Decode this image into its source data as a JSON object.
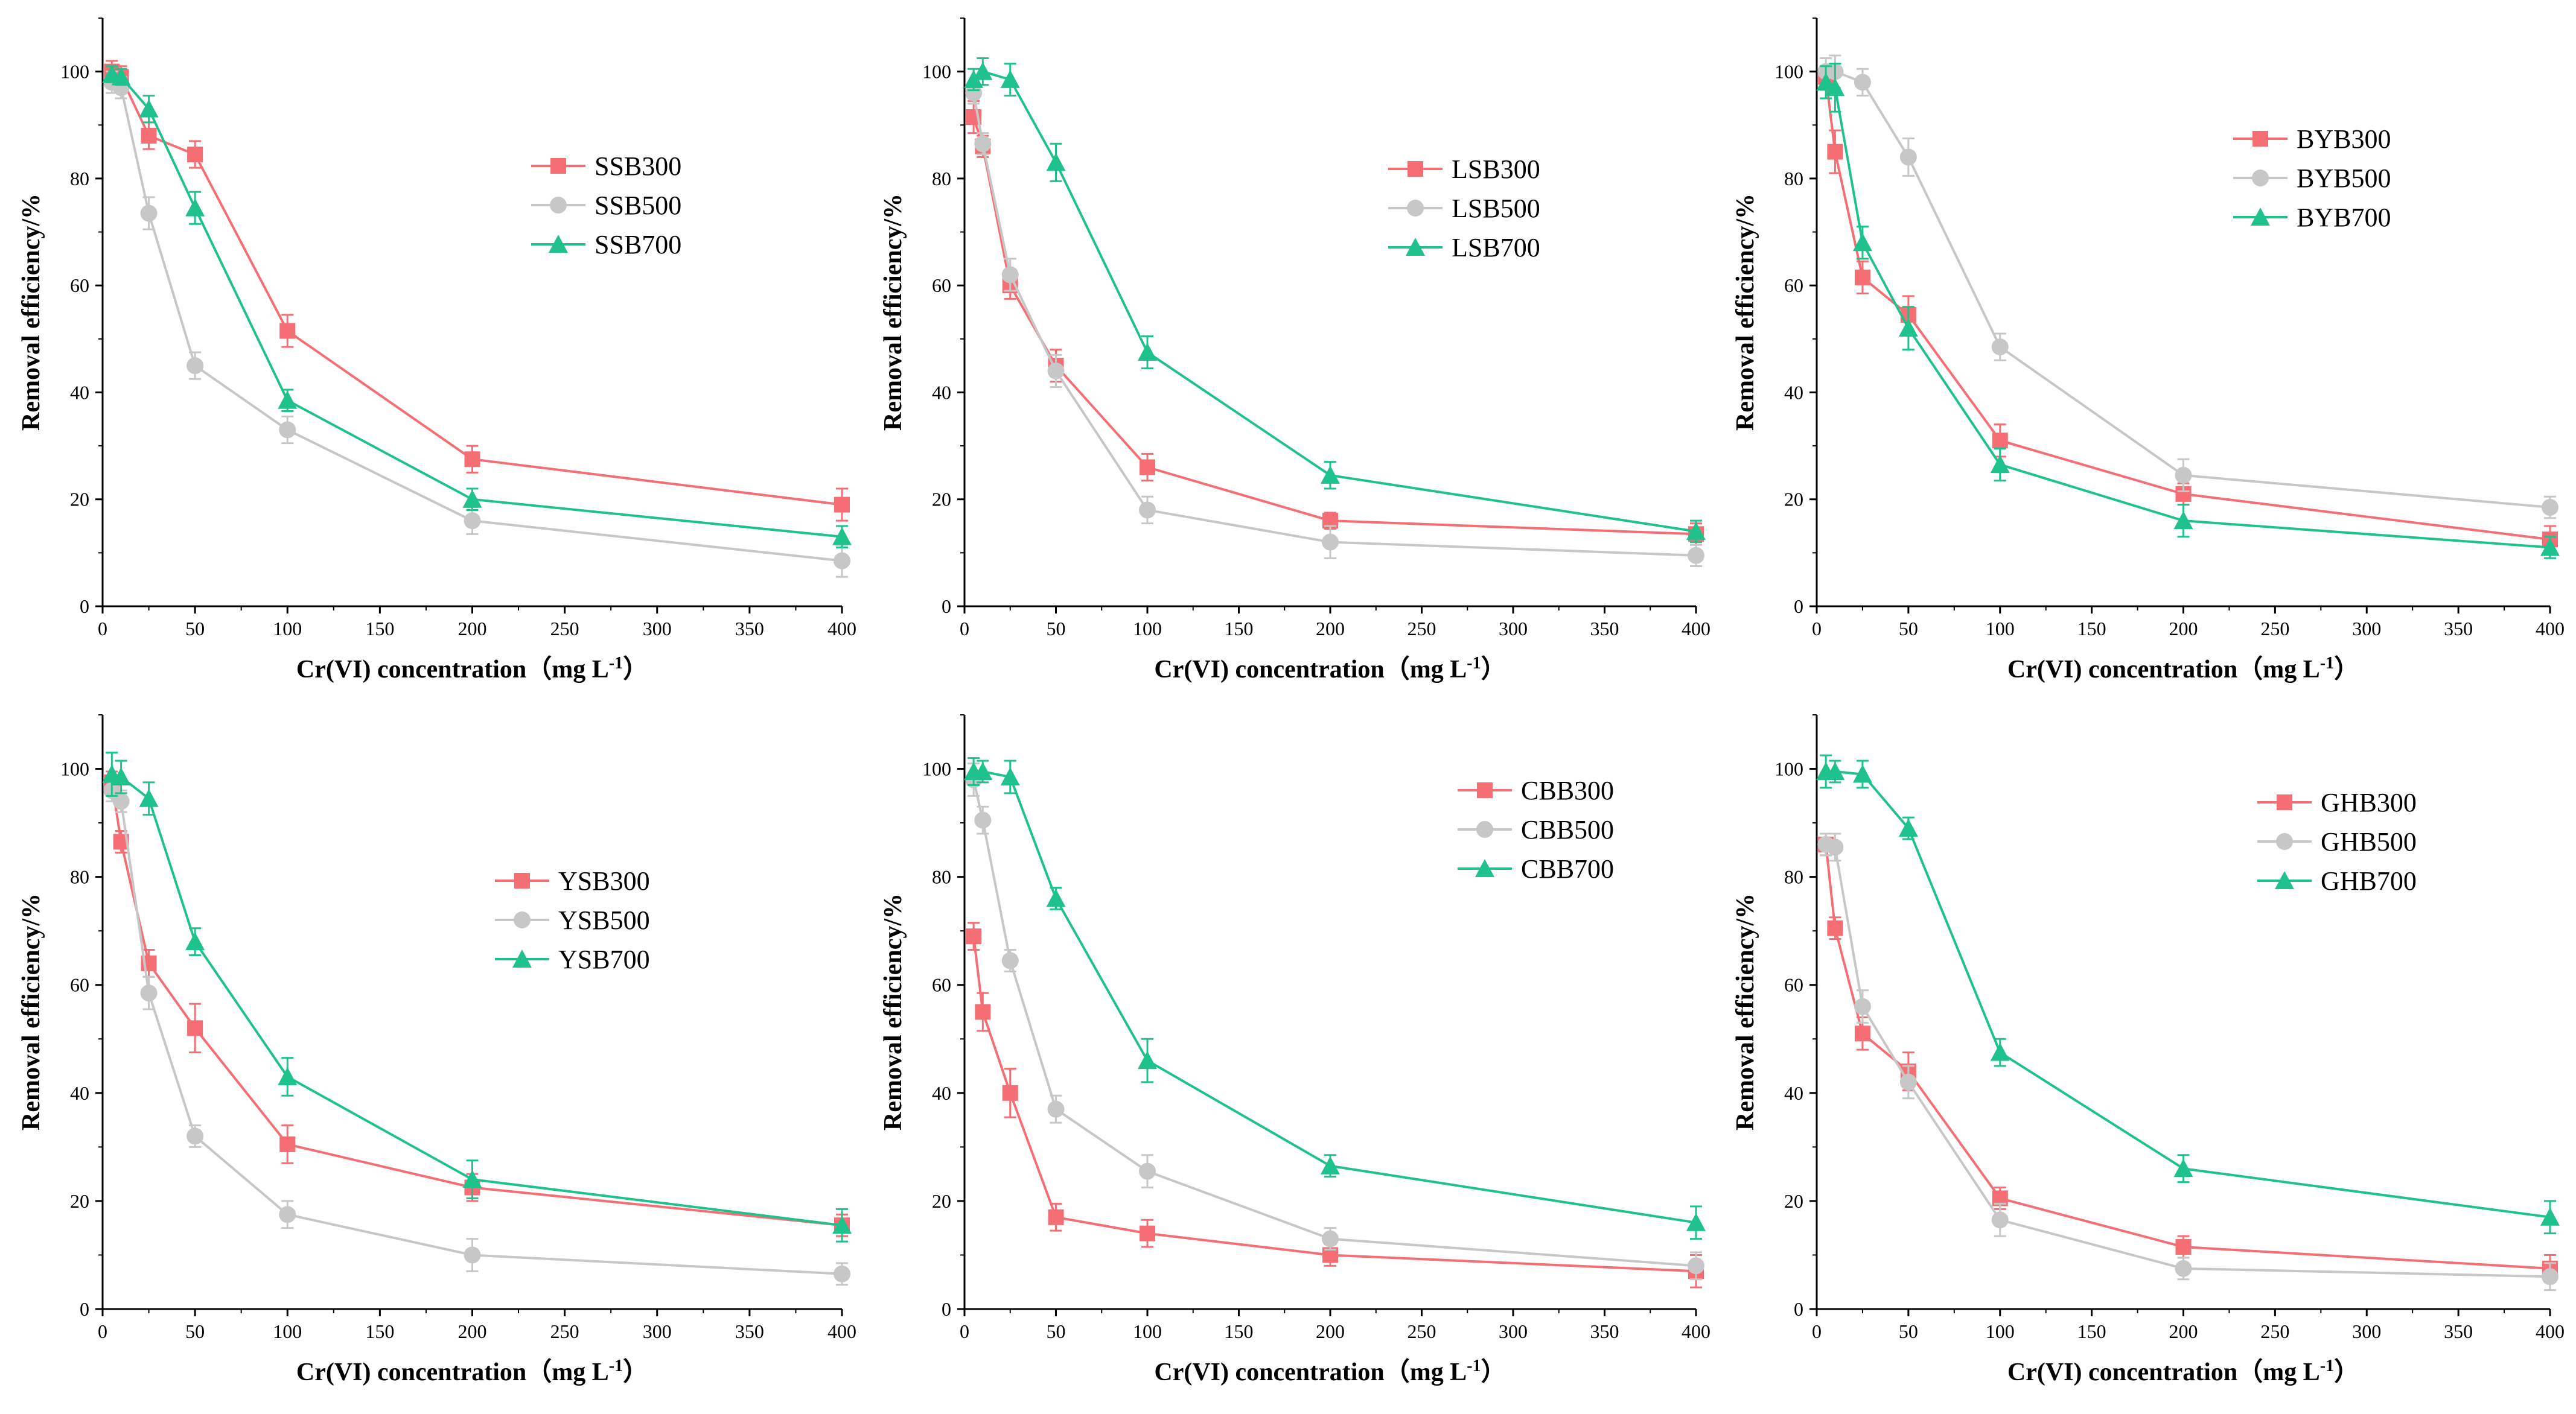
{
  "figure": {
    "colors": {
      "s300": "#F46E74",
      "s500": "#C7C7C7",
      "s700": "#1FC28D"
    },
    "x_ticks": [
      0,
      50,
      100,
      150,
      200,
      250,
      300,
      350,
      400
    ],
    "y_ticks": [
      0,
      20,
      40,
      60,
      80,
      100
    ]
  },
  "chart_data": [
    {
      "type": "line",
      "xlabel": "Cr(VI) concentration（mg L",
      "xlabel_sup": "-1",
      "xlabel_close": "）",
      "ylabel": "Removal efficiency/%",
      "xlim": [
        0,
        400
      ],
      "ylim": [
        0,
        110
      ],
      "legend_position": "upper-middle",
      "x": [
        5,
        10,
        25,
        50,
        100,
        200,
        400
      ],
      "series": [
        {
          "name": "SSB300",
          "marker": "square",
          "values": [
            100,
            99,
            88,
            84.5,
            51.5,
            27.5,
            19
          ],
          "errors": [
            2,
            2,
            2.5,
            2.5,
            3,
            2.5,
            3
          ]
        },
        {
          "name": "SSB500",
          "marker": "circle",
          "values": [
            98,
            97,
            73.5,
            45,
            33,
            16,
            8.5
          ],
          "errors": [
            2,
            2,
            3,
            2.5,
            2.5,
            2.5,
            3
          ]
        },
        {
          "name": "SSB700",
          "marker": "triangle",
          "values": [
            99.5,
            99,
            93,
            74.5,
            38.5,
            20,
            13
          ],
          "errors": [
            1.5,
            1.5,
            2.5,
            3,
            2,
            2,
            2
          ]
        }
      ]
    },
    {
      "type": "line",
      "xlabel": "Cr(VI) concentration（mg L",
      "xlabel_sup": "-1",
      "xlabel_close": "）",
      "ylabel": "Removal efficiency/%",
      "xlim": [
        0,
        400
      ],
      "ylim": [
        0,
        110
      ],
      "legend_position": "upper-middle",
      "x": [
        5,
        10,
        25,
        50,
        100,
        200,
        400
      ],
      "series": [
        {
          "name": "LSB300",
          "marker": "square",
          "values": [
            91.5,
            86,
            60,
            45,
            26,
            16,
            13.5
          ],
          "errors": [
            3,
            2,
            2.5,
            3,
            2.5,
            1.5,
            2
          ]
        },
        {
          "name": "LSB500",
          "marker": "circle",
          "values": [
            96,
            86.5,
            62,
            44,
            18,
            12,
            9.5
          ],
          "errors": [
            2,
            2,
            3,
            3,
            2.5,
            3,
            2
          ]
        },
        {
          "name": "LSB700",
          "marker": "triangle",
          "values": [
            98.5,
            100,
            98.5,
            83,
            47.5,
            24.5,
            14
          ],
          "errors": [
            2,
            2.5,
            3,
            3.5,
            3,
            2.5,
            2
          ]
        }
      ]
    },
    {
      "type": "line",
      "xlabel": "Cr(VI) concentration（mg L",
      "xlabel_sup": "-1",
      "xlabel_close": "）",
      "ylabel": "Removal efficiency/%",
      "xlim": [
        0,
        400
      ],
      "ylim": [
        0,
        110
      ],
      "legend_position": "upper-right",
      "x": [
        5,
        10,
        25,
        50,
        100,
        200,
        400
      ],
      "series": [
        {
          "name": "BYB300",
          "marker": "square",
          "values": [
            99,
            85,
            61.5,
            54.5,
            31,
            21,
            12.5
          ],
          "errors": [
            2,
            4,
            3,
            3.5,
            3,
            2,
            2.5
          ]
        },
        {
          "name": "BYB500",
          "marker": "circle",
          "values": [
            100,
            100,
            98,
            84,
            48.5,
            24.5,
            18.5
          ],
          "errors": [
            2.5,
            3,
            2.5,
            3.5,
            2.5,
            3,
            2
          ]
        },
        {
          "name": "BYB700",
          "marker": "triangle",
          "values": [
            98,
            97,
            68,
            52,
            26.5,
            16,
            11
          ],
          "errors": [
            3,
            4.5,
            3,
            4,
            3,
            3,
            2
          ]
        }
      ]
    },
    {
      "type": "line",
      "xlabel": "Cr(VI) concentration（mg L",
      "xlabel_sup": "-1",
      "xlabel_close": "）",
      "ylabel": "Removal efficiency/%",
      "xlim": [
        0,
        400
      ],
      "ylim": [
        0,
        110
      ],
      "legend_position": "middle",
      "x": [
        5,
        10,
        25,
        50,
        100,
        200,
        400
      ],
      "series": [
        {
          "name": "YSB300",
          "marker": "square",
          "values": [
            97.5,
            86.5,
            64,
            52,
            30.5,
            22.5,
            15.5
          ],
          "errors": [
            2,
            2,
            2.5,
            4.5,
            3.5,
            2.5,
            2
          ]
        },
        {
          "name": "YSB500",
          "marker": "circle",
          "values": [
            96,
            94,
            58.5,
            32,
            17.5,
            10,
            6.5
          ],
          "errors": [
            2,
            2,
            3,
            2,
            2.5,
            3,
            2
          ]
        },
        {
          "name": "YSB700",
          "marker": "triangle",
          "values": [
            99,
            98.5,
            94.5,
            68,
            43,
            24,
            15.5
          ],
          "errors": [
            4,
            3,
            3,
            2.5,
            3.5,
            3.5,
            3
          ]
        }
      ]
    },
    {
      "type": "line",
      "xlabel": "Cr(VI) concentration（mg L",
      "xlabel_sup": "-1",
      "xlabel_close": "）",
      "ylabel": "Removal efficiency/%",
      "xlim": [
        0,
        400
      ],
      "ylim": [
        0,
        110
      ],
      "legend_position": "upper-right",
      "x": [
        5,
        10,
        25,
        50,
        100,
        200,
        400
      ],
      "series": [
        {
          "name": "CBB300",
          "marker": "square",
          "values": [
            69,
            55,
            40,
            17,
            14,
            10,
            7
          ],
          "errors": [
            2.5,
            3.5,
            4.5,
            2.5,
            2.5,
            2,
            3
          ]
        },
        {
          "name": "CBB500",
          "marker": "circle",
          "values": [
            98,
            90.5,
            64.5,
            37,
            25.5,
            13,
            8
          ],
          "errors": [
            3,
            2.5,
            2,
            2.5,
            3,
            2,
            2.5
          ]
        },
        {
          "name": "CBB700",
          "marker": "triangle",
          "values": [
            99.5,
            99.5,
            98.5,
            76,
            46,
            26.5,
            16
          ],
          "errors": [
            2.5,
            2,
            3,
            2,
            4,
            2,
            3
          ]
        }
      ]
    },
    {
      "type": "line",
      "xlabel": "Cr(VI) concentration（mg L",
      "xlabel_sup": "-1",
      "xlabel_close": "）",
      "ylabel": "Removal efficiency/%",
      "xlim": [
        0,
        400
      ],
      "ylim": [
        0,
        110
      ],
      "legend_position": "upper-right",
      "x": [
        5,
        10,
        25,
        50,
        100,
        200,
        400
      ],
      "series": [
        {
          "name": "GHB300",
          "marker": "square",
          "values": [
            86,
            70.5,
            51,
            44,
            20.5,
            11.5,
            7.5
          ],
          "errors": [
            2,
            2,
            3,
            3.5,
            2,
            2,
            2.5
          ]
        },
        {
          "name": "GHB500",
          "marker": "circle",
          "values": [
            86,
            85.5,
            56,
            42,
            16.5,
            7.5,
            6
          ],
          "errors": [
            2,
            2.5,
            3,
            3,
            3,
            2,
            2.5
          ]
        },
        {
          "name": "GHB700",
          "marker": "triangle",
          "values": [
            99.5,
            99.5,
            99,
            89,
            47.5,
            26,
            17
          ],
          "errors": [
            3,
            2,
            2.5,
            2,
            2.5,
            2.5,
            3
          ]
        }
      ]
    }
  ]
}
